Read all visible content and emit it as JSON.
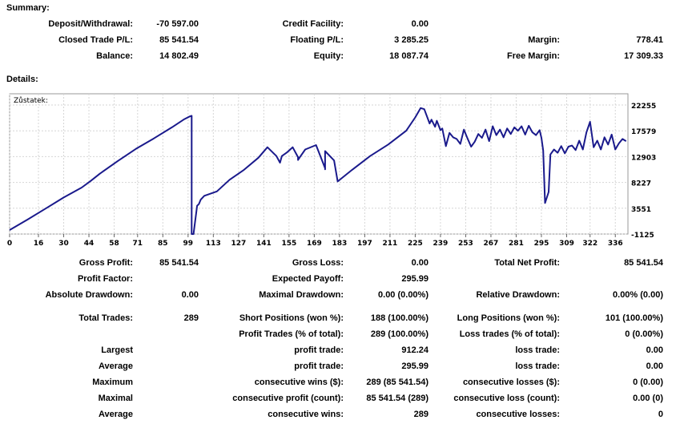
{
  "summary": {
    "title": "Summary:",
    "deposit_label": "Deposit/Withdrawal:",
    "deposit_value": "-70 597.00",
    "credit_label": "Credit Facility:",
    "credit_value": "0.00",
    "closed_label": "Closed Trade P/L:",
    "closed_value": "85 541.54",
    "floating_label": "Floating P/L:",
    "floating_value": "3 285.25",
    "margin_label": "Margin:",
    "margin_value": "778.41",
    "balance_label": "Balance:",
    "balance_value": "14 802.49",
    "equity_label": "Equity:",
    "equity_value": "18 087.74",
    "free_margin_label": "Free Margin:",
    "free_margin_value": "17 309.33"
  },
  "details": {
    "title": "Details:",
    "rows": [
      [
        "Gross Profit:",
        "85 541.54",
        "Gross Loss:",
        "0.00",
        "Total Net Profit:",
        "85 541.54"
      ],
      [
        "Profit Factor:",
        "",
        "Expected Payoff:",
        "295.99",
        "",
        ""
      ],
      [
        "Absolute Drawdown:",
        "0.00",
        "Maximal Drawdown:",
        "0.00 (0.00%)",
        "Relative Drawdown:",
        "0.00% (0.00)"
      ],
      [
        "Total Trades:",
        "289",
        "Short Positions (won %):",
        "188 (100.00%)",
        "Long Positions (won %):",
        "101 (100.00%)"
      ],
      [
        "",
        "",
        "Profit Trades (% of total):",
        "289 (100.00%)",
        "Loss trades (% of total):",
        "0 (0.00%)"
      ],
      [
        "Largest",
        "",
        "profit trade:",
        "912.24",
        "loss trade:",
        "0.00"
      ],
      [
        "Average",
        "",
        "profit trade:",
        "295.99",
        "loss trade:",
        "0.00"
      ],
      [
        "Maximum",
        "",
        "consecutive wins ($):",
        "289 (85 541.54)",
        "consecutive losses ($):",
        "0 (0.00)"
      ],
      [
        "Maximal",
        "",
        "consecutive profit (count):",
        "85 541.54 (289)",
        "consecutive loss (count):",
        "0.00 (0)"
      ],
      [
        "Average",
        "",
        "consecutive wins:",
        "289",
        "consecutive losses:",
        "0"
      ]
    ]
  },
  "chart_data": {
    "type": "line",
    "title": "Zůstatek:",
    "x_ticks": [
      "0",
      "16",
      "30",
      "44",
      "58",
      "71",
      "85",
      "99",
      "113",
      "127",
      "141",
      "155",
      "169",
      "183",
      "197",
      "211",
      "225",
      "239",
      "253",
      "267",
      "281",
      "295",
      "309",
      "322",
      "336"
    ],
    "y_ticks": [
      "22255",
      "17579",
      "12903",
      "8227",
      "3551",
      "-1125"
    ],
    "ylim": [
      -1125,
      22255
    ],
    "xlim": [
      0,
      343
    ],
    "line_color": "#1a1a8c",
    "series": [
      {
        "x": [
          0,
          10,
          20,
          30,
          40,
          45,
          50,
          60,
          70,
          80,
          90,
          97,
          100,
          101,
          101,
          102,
          104,
          105,
          106,
          108,
          115,
          122,
          130,
          138,
          143,
          148,
          150,
          151,
          154,
          157,
          160,
          160,
          161,
          164,
          170,
          175,
          175,
          175,
          175,
          180,
          182,
          190,
          200,
          210,
          220,
          225,
          228,
          230,
          233,
          234,
          236,
          237,
          239,
          240,
          242,
          244,
          246,
          248,
          250,
          252,
          254,
          256,
          258,
          260,
          262,
          264,
          266,
          268,
          270,
          272,
          274,
          276,
          278,
          280,
          282,
          284,
          286,
          288,
          290,
          292,
          294,
          295,
          296,
          297,
          299,
          300,
          302,
          304,
          306,
          308,
          310,
          312,
          314,
          316,
          318,
          320,
          322,
          324,
          326,
          328,
          330,
          332,
          334,
          336,
          338,
          340,
          342
        ],
        "y": [
          -400,
          1500,
          3500,
          5500,
          7300,
          8500,
          9800,
          12100,
          14300,
          16200,
          18200,
          19700,
          20200,
          20300,
          -1125,
          -1125,
          4000,
          4300,
          5100,
          5800,
          6600,
          8700,
          10500,
          12700,
          14600,
          13000,
          11800,
          13000,
          13700,
          14600,
          12800,
          12300,
          12800,
          14200,
          15000,
          10800,
          11000,
          10600,
          13900,
          12200,
          8400,
          10500,
          13000,
          15100,
          17600,
          20000,
          21700,
          21500,
          18900,
          19600,
          18300,
          19400,
          17700,
          18000,
          14800,
          17200,
          16400,
          16100,
          15200,
          17800,
          16200,
          14700,
          15600,
          17000,
          16300,
          17800,
          15700,
          18400,
          16800,
          17800,
          16400,
          18000,
          17000,
          18200,
          17600,
          18400,
          16900,
          18500,
          17300,
          16800,
          17700,
          16300,
          14000,
          4500,
          6500,
          13300,
          14200,
          13600,
          14800,
          13500,
          14700,
          14900,
          14100,
          15800,
          14200,
          17300,
          19200,
          14600,
          15800,
          14200,
          16400,
          15100,
          16900,
          14200,
          15300,
          16100,
          15700
        ]
      }
    ]
  }
}
